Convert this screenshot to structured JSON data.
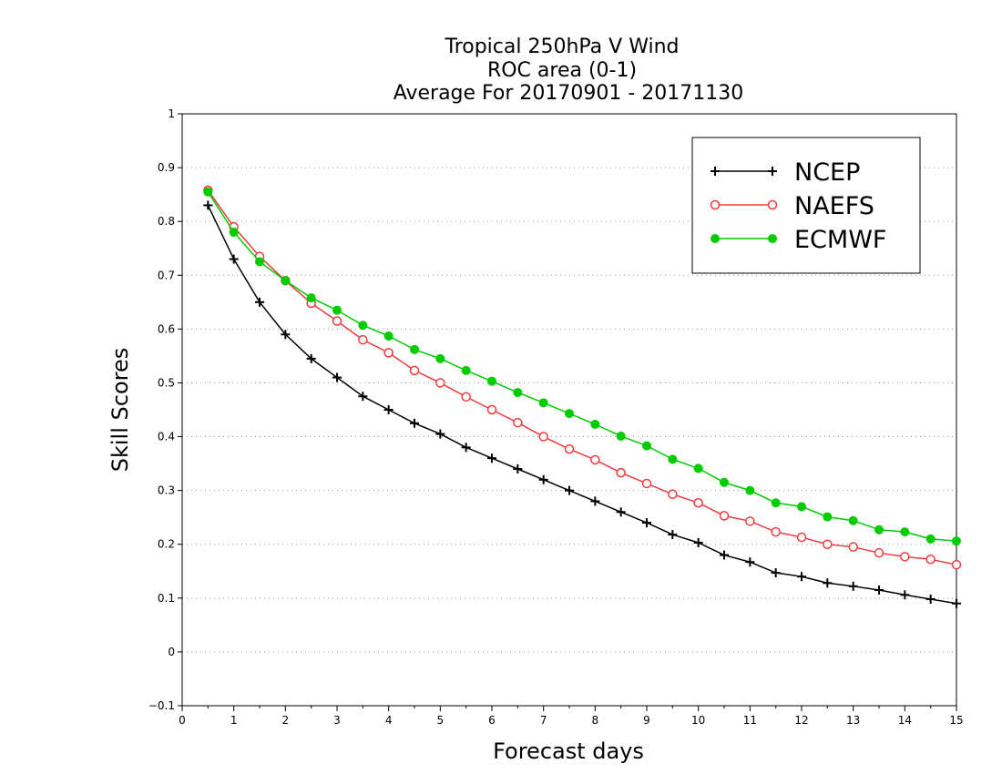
{
  "chart_data": {
    "type": "line",
    "title": [
      "Tropical 250hPa V Wind",
      "ROC area (0-1)",
      "Average For 20170901 - 20171130"
    ],
    "xlabel": "Forecast days",
    "ylabel": "Skill Scores",
    "xlim": [
      0,
      15
    ],
    "ylim": [
      -0.1,
      1
    ],
    "xticks": [
      "0",
      "1",
      "2",
      "3",
      "4",
      "5",
      "6",
      "7",
      "8",
      "9",
      "10",
      "11",
      "12",
      "13",
      "14",
      "15"
    ],
    "yticks": [
      "−0.1",
      "0",
      "0.1",
      "0.2",
      "0.3",
      "0.4",
      "0.5",
      "0.6",
      "0.7",
      "0.8",
      "0.9",
      "1"
    ],
    "grid": true,
    "legend_position": "top-right",
    "x": [
      0.5,
      1,
      1.5,
      2,
      2.5,
      3,
      3.5,
      4,
      4.5,
      5,
      5.5,
      6,
      6.5,
      7,
      7.5,
      8,
      8.5,
      9,
      9.5,
      10,
      10.5,
      11,
      11.5,
      12,
      12.5,
      13,
      13.5,
      14,
      14.5,
      15
    ],
    "series": [
      {
        "name": "NCEP",
        "color": "#000000",
        "marker": "plus",
        "values": [
          0.83,
          0.73,
          0.65,
          0.59,
          0.545,
          0.51,
          0.475,
          0.45,
          0.425,
          0.405,
          0.38,
          0.36,
          0.34,
          0.32,
          0.3,
          0.28,
          0.26,
          0.24,
          0.218,
          0.203,
          0.18,
          0.167,
          0.147,
          0.14,
          0.128,
          0.122,
          0.115,
          0.106,
          0.098,
          0.09
        ]
      },
      {
        "name": "NAEFS",
        "color": "#ee3b3b",
        "marker": "open-circle",
        "values": [
          0.858,
          0.79,
          0.735,
          0.69,
          0.648,
          0.615,
          0.58,
          0.556,
          0.523,
          0.5,
          0.474,
          0.45,
          0.426,
          0.4,
          0.377,
          0.357,
          0.333,
          0.313,
          0.293,
          0.277,
          0.253,
          0.243,
          0.223,
          0.213,
          0.2,
          0.195,
          0.184,
          0.177,
          0.172,
          0.162
        ]
      },
      {
        "name": "ECMWF",
        "color": "#00cc00",
        "marker": "filled-circle",
        "values": [
          0.855,
          0.78,
          0.725,
          0.69,
          0.658,
          0.635,
          0.607,
          0.587,
          0.562,
          0.545,
          0.523,
          0.503,
          0.482,
          0.463,
          0.443,
          0.423,
          0.401,
          0.383,
          0.358,
          0.341,
          0.315,
          0.3,
          0.277,
          0.27,
          0.251,
          0.244,
          0.227,
          0.223,
          0.21,
          0.206
        ]
      }
    ]
  }
}
